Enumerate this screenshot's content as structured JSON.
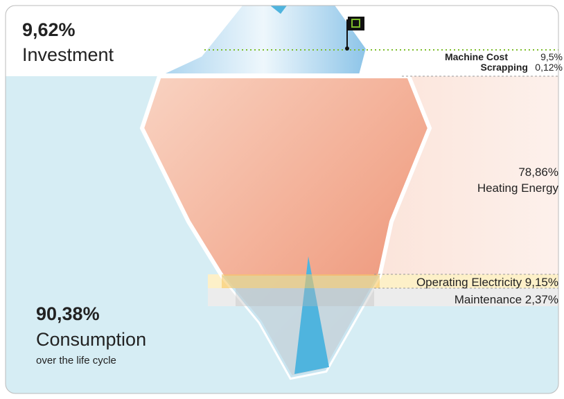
{
  "investment": {
    "percent": "9,62%",
    "label": "Investment",
    "items": [
      {
        "name": "Machine Cost",
        "value": "9,5%"
      },
      {
        "name": "Scrapping",
        "value": "0,12%"
      }
    ]
  },
  "consumption": {
    "percent": "90,38%",
    "label": "Consumption",
    "sublabel": "over the life cycle",
    "heating": {
      "value": "78,86%",
      "name": "Heating Energy"
    },
    "electricity": "Operating Electricity 9,15%",
    "maintenance": "Maintenance 2,37%"
  }
}
